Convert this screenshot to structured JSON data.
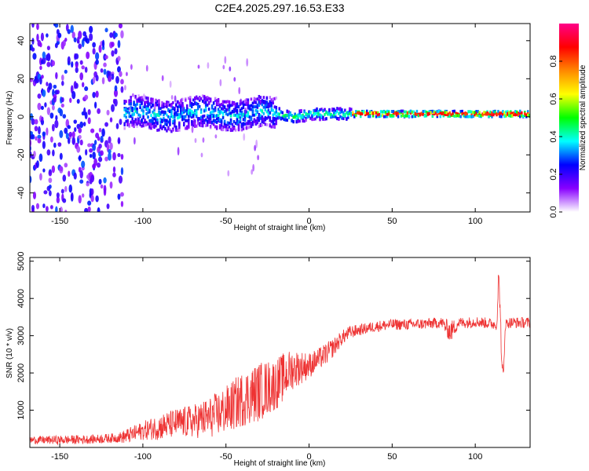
{
  "chart_data": [
    {
      "type": "heatmap",
      "title": "C2E4.2025.297.16.53.E33",
      "xlabel": "Height of straight line (km)",
      "ylabel": "Frequency (Hz)",
      "xlim": [
        -168,
        133
      ],
      "ylim": [
        -50,
        49
      ],
      "x_ticks": [
        "-150",
        "-100",
        "-50",
        "0",
        "50",
        "100"
      ],
      "x_tick_values": [
        -150,
        -100,
        -50,
        0,
        50,
        100
      ],
      "y_ticks": [
        "-40",
        "-20",
        "0",
        "20",
        "40"
      ],
      "y_tick_values": [
        -40,
        -20,
        0,
        20,
        40
      ],
      "colorbar": {
        "label": "Normalized spectral amplitude",
        "range": [
          0,
          1
        ],
        "ticks": [
          "0.0",
          "0.2",
          "0.4",
          "0.6",
          "0.8"
        ],
        "tick_values": [
          0.0,
          0.2,
          0.4,
          0.6,
          0.8
        ],
        "colors": [
          "#ffffff",
          "#8800ff",
          "#0000ff",
          "#00ffff",
          "#00ff00",
          "#ffff00",
          "#ff8800",
          "#ff0000",
          "#ff0088"
        ]
      },
      "regions": [
        {
          "x_from": -168,
          "x_to": -112,
          "description_level": 0.15,
          "freq_spread": 49
        },
        {
          "x_from": -112,
          "x_to": -20,
          "description_level": 0.35,
          "freq_spread": 8
        },
        {
          "x_from": -20,
          "x_to": 25,
          "description_level": 0.45,
          "freq_spread": 3
        },
        {
          "x_from": 25,
          "x_to": 133,
          "description_level": 0.85,
          "freq_spread": 1.5
        }
      ]
    },
    {
      "type": "line",
      "title": "",
      "xlabel": "Height of straight line (km)",
      "ylabel": "SNR (10 * v/v)",
      "xlim": [
        -168,
        133
      ],
      "ylim": [
        0,
        5100
      ],
      "x_ticks": [
        "-150",
        "-100",
        "-50",
        "0",
        "50",
        "100"
      ],
      "x_tick_values": [
        -150,
        -100,
        -50,
        0,
        50,
        100
      ],
      "y_ticks": [
        "1000",
        "2000",
        "3000",
        "4000",
        "5000"
      ],
      "y_tick_values": [
        1000,
        2000,
        3000,
        4000,
        5000
      ],
      "series": [
        {
          "name": "SNR",
          "color": "#ee3333",
          "x": [
            -168,
            -150,
            -130,
            -115,
            -110,
            -100,
            -90,
            -80,
            -70,
            -60,
            -50,
            -40,
            -30,
            -20,
            -15,
            -10,
            -5,
            0,
            5,
            10,
            15,
            20,
            25,
            30,
            35,
            40,
            50,
            60,
            70,
            80,
            85,
            90,
            95,
            100,
            105,
            110,
            113,
            114,
            115,
            116,
            117,
            118,
            120,
            125,
            133
          ],
          "values": [
            200,
            200,
            220,
            260,
            300,
            450,
            550,
            650,
            700,
            800,
            1000,
            1300,
            1500,
            1700,
            1900,
            2100,
            2150,
            2200,
            2350,
            2500,
            2700,
            2950,
            3100,
            3150,
            3200,
            3250,
            3300,
            3300,
            3320,
            3350,
            3100,
            3350,
            3350,
            3380,
            3350,
            3320,
            3300,
            4600,
            3800,
            2100,
            1900,
            3300,
            3350,
            3350,
            3350
          ],
          "noise_amplitude": [
            100,
            120,
            120,
            130,
            200,
            250,
            350,
            400,
            450,
            550,
            650,
            750,
            800,
            700,
            650,
            550,
            450,
            350,
            300,
            300,
            250,
            200,
            180,
            150,
            150,
            150,
            150,
            150,
            150,
            150,
            300,
            150,
            150,
            150,
            150,
            150,
            150,
            300,
            300,
            250,
            250,
            150,
            150,
            150,
            150
          ]
        }
      ]
    }
  ]
}
